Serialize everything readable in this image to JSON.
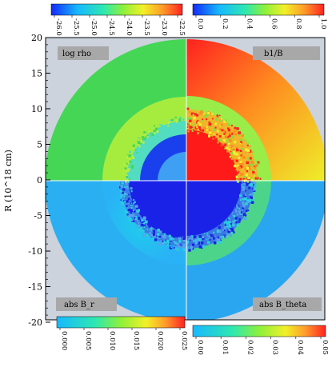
{
  "chart_data": {
    "type": "heatmap",
    "title": "",
    "ylabel": "R (10^18 cm)",
    "xlabel": "",
    "ylim": [
      -20,
      20
    ],
    "yticks": [
      "20",
      "15",
      "10",
      "5",
      "0",
      "-5",
      "-10",
      "-15",
      "-20"
    ],
    "quadrants": [
      {
        "position": "top-left",
        "label": "log rho"
      },
      {
        "position": "top-right",
        "label": "b1/B"
      },
      {
        "position": "bottom-left",
        "label": "abs B_r"
      },
      {
        "position": "bottom-right",
        "label": "abs B_theta"
      }
    ],
    "colorbars": [
      {
        "position": "top-left",
        "ticks": [
          "-26.0",
          "-25.5",
          "-25.0",
          "-24.5",
          "-24.0",
          "-23.5",
          "-23.0",
          "-22.5"
        ]
      },
      {
        "position": "top-right",
        "ticks": [
          "0.0",
          "0.2",
          "0.4",
          "0.6",
          "0.8",
          "1.0"
        ]
      },
      {
        "position": "bottom-left",
        "ticks": [
          "0.000",
          "0.005",
          "0.010",
          "0.015",
          "0.020",
          "0.025"
        ]
      },
      {
        "position": "bottom-right",
        "ticks": [
          "0.00",
          "0.01",
          "0.02",
          "0.03",
          "0.04",
          "0.05"
        ]
      }
    ],
    "colors": {
      "background": "#ccd3dd",
      "red": "#ff1a1a",
      "orange": "#ff9a2a",
      "yellow": "#ecf02a",
      "green": "#48d85a",
      "cyan": "#38d6e6",
      "sky": "#3ab0f0",
      "blue": "#1e2ef0"
    }
  }
}
